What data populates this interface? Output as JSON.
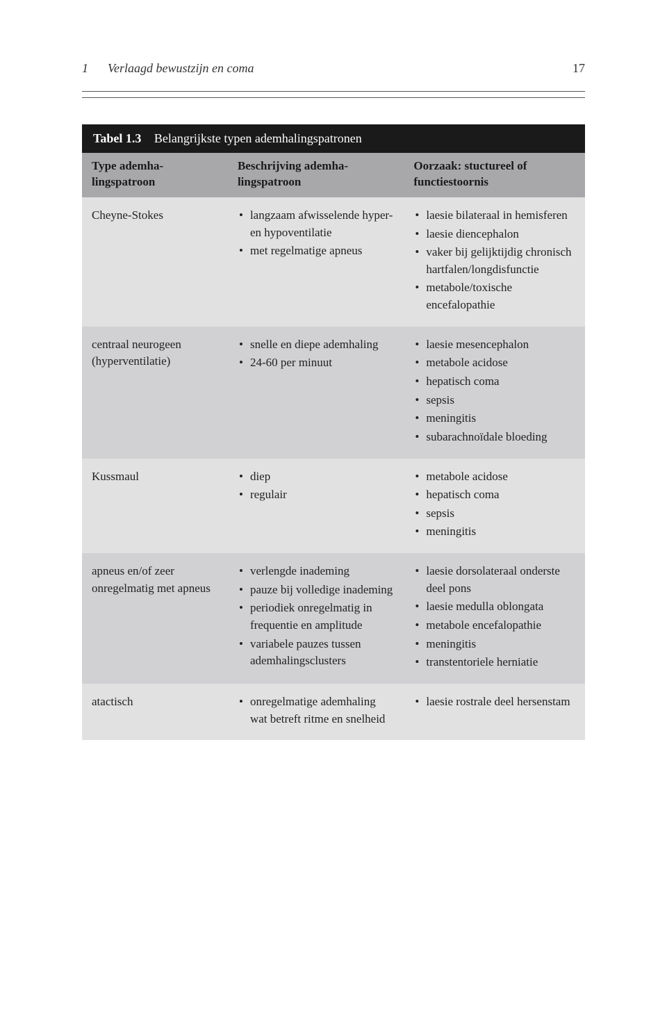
{
  "colors": {
    "page_bg": "#ffffff",
    "text": "#2a2a2a",
    "title_bar_bg": "#1a1a1a",
    "title_bar_text": "#ffffff",
    "thead_bg": "#a8a7aa",
    "row_a_bg": "#e2e1e2",
    "row_b_bg": "#d1d0d2",
    "rule": "#555555"
  },
  "typography": {
    "body_font": "serif",
    "body_size_pt": 12,
    "header_weight": 700,
    "line_height": 1.45
  },
  "running_head": {
    "chapter_num": "1",
    "chapter_title": "Verlaagd bewustzijn en coma",
    "page_num": "17"
  },
  "table": {
    "label": "Tabel 1.3",
    "title": "Belangrijkste typen ademhalingspatronen",
    "columns": [
      "Type ademha­lingspatroon",
      "Beschrijving ademha­lingspatroon",
      "Oorzaak: stuctureel of functiestoornis"
    ],
    "col_widths_pct": [
      29,
      35,
      36
    ],
    "rows": [
      {
        "shade": "a",
        "c1_text": "Cheyne-Stokes",
        "c2_items": [
          "langzaam afwis­selende hyper- en hypoventilatie",
          "met regelmatige apneus"
        ],
        "c3_items": [
          "laesie bilateraal in hemisferen",
          "laesie diencephalon",
          "vaker bij gelijktijdig chronisch hartfalen/longdisfunctie",
          "metabole/toxische encefalopathie"
        ]
      },
      {
        "shade": "b",
        "c1_text": "centraal neuro­geen (hyperventilatie)",
        "c2_items": [
          "snelle en diepe ademhaling",
          "24-60 per minuut"
        ],
        "c3_items": [
          "laesie mesencephalon",
          "metabole acidose",
          "hepatisch coma",
          "sepsis",
          "meningitis",
          "subarachnoïdale bloe­ding"
        ]
      },
      {
        "shade": "a",
        "c1_text": "Kussmaul",
        "c2_items": [
          "diep",
          "regulair"
        ],
        "c3_items": [
          "metabole acidose",
          "hepatisch coma",
          "sepsis",
          "meningitis"
        ]
      },
      {
        "shade": "b",
        "c1_text": "apneus en/of zeer onregelmatig met apneus",
        "c2_items": [
          "verlengde inade­ming",
          "pauze bij volledige inademing",
          "periodiek onregel­matig in frequentie en amplitude",
          "variabele pauzes tussen ademhalings­clusters"
        ],
        "c3_items": [
          "laesie dorsolateraal onderste deel pons",
          "laesie medulla oblon­gata",
          "metabole encefalopa­thie",
          "meningitis",
          "transtentoriele herni­atie"
        ]
      },
      {
        "shade": "a",
        "c1_text": "atactisch",
        "c2_items": [
          "onregelmatige ademhaling wat betreft ritme en snelheid"
        ],
        "c3_items": [
          "laesie rostrale deel hersenstam"
        ]
      }
    ]
  }
}
